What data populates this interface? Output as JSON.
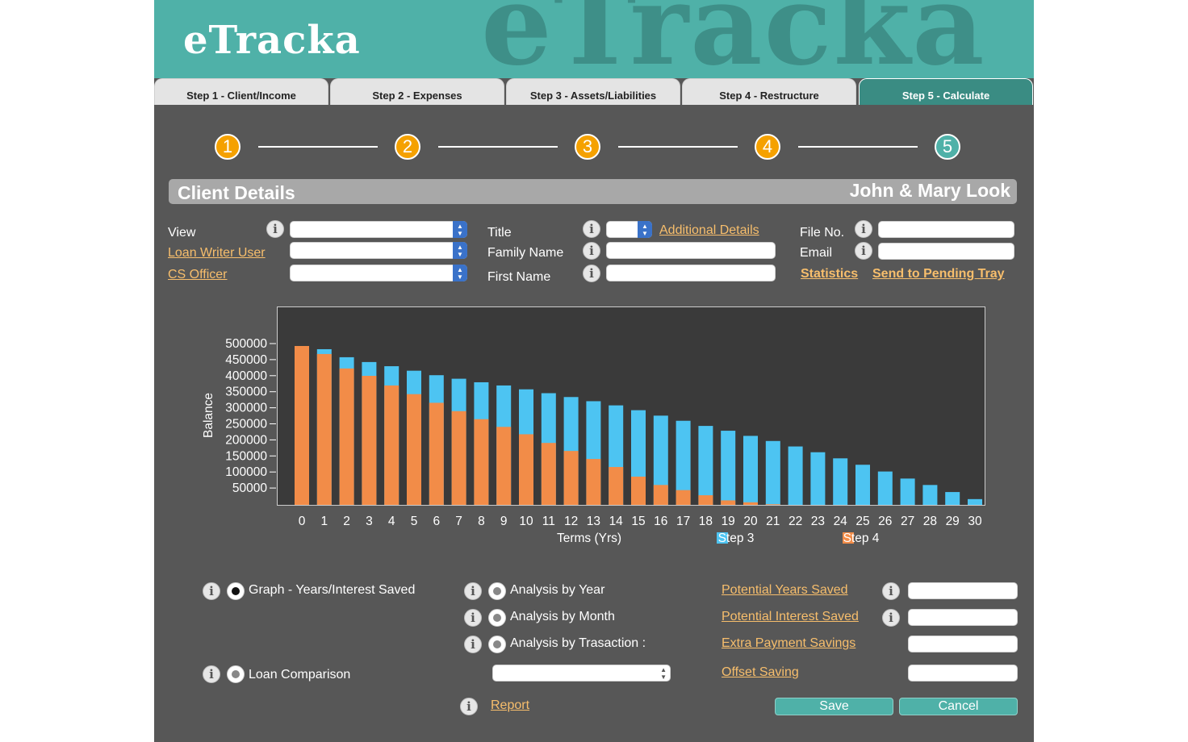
{
  "app": {
    "logo": "eTracka",
    "watermark": "eTracka"
  },
  "tabs": [
    {
      "label": "Step 1 - Client/Income"
    },
    {
      "label": "Step 2 - Expenses"
    },
    {
      "label": "Step 3 - Assets/Liabilities"
    },
    {
      "label": "Step 4 - Restructure"
    },
    {
      "label": "Step 5 - Calculate"
    }
  ],
  "active_tab": 5,
  "stepper": {
    "steps": [
      "1",
      "2",
      "3",
      "4",
      "5"
    ],
    "current": 5,
    "colors": {
      "done": "#f5a100",
      "current": "#4fb1a8"
    }
  },
  "client_details": {
    "title": "Client Details",
    "client_name": "John & Mary Look",
    "view_label": "View",
    "view_value": "",
    "loan_writer_label": "Loan Writer User",
    "loan_writer_value": "",
    "cs_officer_label": "CS Officer",
    "cs_officer_value": "",
    "title_label": "Title",
    "title_value": "",
    "additional_details": "Additional Details",
    "family_name_label": "Family Name",
    "family_name_value": "",
    "first_name_label": "First Name",
    "first_name_value": "",
    "file_no_label": "File No.",
    "file_no_value": "",
    "email_label": "Email",
    "email_value": "",
    "statistics": "Statistics",
    "send_pending": "Send to Pending Tray"
  },
  "chart_data": {
    "type": "bar",
    "stacked": "overlay",
    "categories": [
      "0",
      "1",
      "2",
      "3",
      "4",
      "5",
      "6",
      "7",
      "8",
      "9",
      "10",
      "11",
      "12",
      "13",
      "14",
      "15",
      "16",
      "17",
      "18",
      "19",
      "20",
      "21",
      "22",
      "23",
      "24",
      "25",
      "26",
      "27",
      "28",
      "29",
      "30"
    ],
    "series": [
      {
        "name": "Step 3",
        "color": "#4dc4f2",
        "values": [
          495000,
          485000,
          460000,
          445000,
          432000,
          418000,
          404000,
          393000,
          382000,
          372000,
          360000,
          348000,
          336000,
          323000,
          310000,
          295000,
          278000,
          262000,
          246000,
          231000,
          215000,
          199000,
          182000,
          164000,
          145000,
          125000,
          104000,
          82000,
          62000,
          40000,
          18000
        ]
      },
      {
        "name": "Step 4",
        "color": "#f28c48",
        "values": [
          495000,
          470000,
          425000,
          402000,
          372000,
          345000,
          318000,
          292000,
          267000,
          243000,
          220000,
          193000,
          168000,
          143000,
          118000,
          88000,
          62000,
          46000,
          30000,
          14000,
          8000,
          2000,
          0,
          0,
          0,
          0,
          0,
          0,
          0,
          0,
          0
        ]
      }
    ],
    "xlabel": "Terms (Yrs)",
    "ylabel": "Balance",
    "yticks": [
      "500000",
      "450000",
      "400000",
      "350000",
      "300000",
      "250000",
      "200000",
      "150000",
      "100000",
      "50000"
    ],
    "ylim": [
      0,
      500000
    ],
    "legend_position": "bottom",
    "grid": false
  },
  "options": {
    "graph_years": "Graph - Years/Interest Saved",
    "loan_comparison": "Loan Comparison",
    "analysis_year": "Analysis by Year",
    "analysis_month": "Analysis by Month",
    "analysis_transaction": "Analysis by Trasaction :",
    "transaction_select": "",
    "report": "Report",
    "selected": "graph_years"
  },
  "savings": {
    "potential_years": "Potential Years Saved",
    "potential_years_value": "",
    "potential_interest": "Potential Interest Saved",
    "potential_interest_value": "",
    "extra_payment": "Extra Payment Savings",
    "extra_payment_value": "",
    "offset_saving": "Offset Saving",
    "offset_saving_value": ""
  },
  "buttons": {
    "save": "Save",
    "cancel": "Cancel"
  }
}
